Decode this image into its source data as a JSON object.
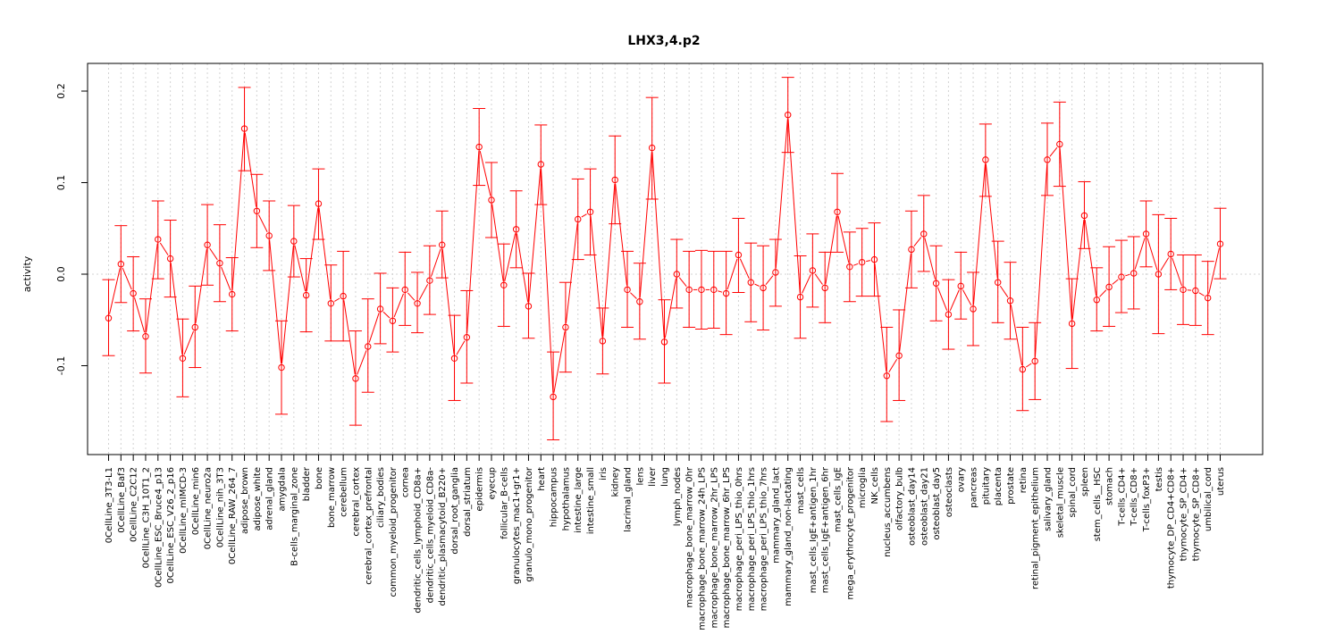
{
  "chart_data": {
    "type": "line",
    "title": "LHX3,4.p2",
    "xlabel": "",
    "ylabel": "activity",
    "ylim": [
      -0.2,
      0.22
    ],
    "yticks": [
      -0.1,
      0.0,
      0.1,
      0.2
    ],
    "ytick_labels": [
      "-0.1",
      "0.0",
      "0.1",
      "0.2"
    ],
    "grid": true,
    "reference_line": 0.0,
    "colors": {
      "series": "#ff0000",
      "grid": "#d3d3d3",
      "axis": "#000000"
    },
    "categories": [
      "0CellLine_3T3-L1",
      "0CellLine_Baf3",
      "0CellLine_C2C12",
      "0CellLine_C3H_10T1_2",
      "0CellLine_ESC_Bruce4_p13",
      "0CellLine_ESC_V26_2_p16",
      "0CellLine_mIMCD-3",
      "0CellLine_min6",
      "0CellLine_neuro2a",
      "0CellLine_nih_3T3",
      "0CellLine_RAW_264_7",
      "adipose_brown",
      "adipose_white",
      "adrenal_gland",
      "amygdala",
      "B-cells_marginal_zone",
      "bladder",
      "bone",
      "bone_marrow",
      "cerebellum",
      "cerebral_cortex",
      "cerebral_cortex_prefrontal",
      "ciliary_bodies",
      "common_myeloid_progenitor",
      "cornea",
      "dendritic_cells_lymphoid_CD8a+",
      "dendritic_cells_myeloid_CD8a-",
      "dendritic_plasmacytoid_B220+",
      "dorsal_root_ganglia",
      "dorsal_striatum",
      "epidermis",
      "eyecup",
      "follicular_B-cells",
      "granulocytes_mac1+gr1+",
      "granulo_mono_progenitor",
      "heart",
      "hippocampus",
      "hypothalamus",
      "intestine_large",
      "intestine_small",
      "iris",
      "kidney",
      "lacrimal_gland",
      "lens",
      "liver",
      "lung",
      "lymph_nodes",
      "macrophage_bone_marrow_0hr",
      "macrophage_bone_marrow_24h_LPS",
      "macrophage_bone_marrow_2hr_LPS",
      "macrophage_bone_marrow_6hr_LPS",
      "macrophage_peri_LPS_thio_0hrs",
      "macrophage_peri_LPS_thio_1hrs",
      "macrophage_peri_LPS_thio_7hrs",
      "mammary_gland_lact",
      "mammary_gland_non-lactating",
      "mast_cells",
      "mast_cells_IgE+antigen_1hr",
      "mast_cells_IgE+antigen_6hr",
      "mast_cells_IgE",
      "mega_erythrocyte_progenitor",
      "microglia",
      "NK_cells",
      "nucleus_accumbens",
      "olfactory_bulb",
      "osteoblast_day14",
      "osteoblast_day21",
      "osteoblast_day5",
      "osteoclasts",
      "ovary",
      "pancreas",
      "pituitary",
      "placenta",
      "prostate",
      "retina",
      "retinal_pigment_epithelium",
      "salivary_gland",
      "skeletal_muscle",
      "spinal_cord",
      "spleen",
      "stem_cells__HSC",
      "stomach",
      "T-cells_CD4+",
      "T-cells_CD8+",
      "T-cells_foxP3+",
      "testis",
      "thymocyte_DP_CD4+CD8+",
      "thymocyte_SP_CD4+",
      "thymocyte_SP_CD8+",
      "umbilical_cord",
      "uterus"
    ],
    "series": [
      {
        "values": [
          -0.048,
          0.011,
          -0.021,
          -0.068,
          0.038,
          0.017,
          -0.092,
          -0.058,
          0.032,
          0.012,
          -0.022,
          0.159,
          0.069,
          0.042,
          -0.102,
          0.036,
          -0.023,
          0.077,
          -0.032,
          -0.024,
          -0.114,
          -0.079,
          -0.038,
          -0.051,
          -0.017,
          -0.032,
          -0.007,
          0.032,
          -0.092,
          -0.069,
          0.139,
          0.081,
          -0.012,
          0.049,
          -0.035,
          0.12,
          -0.134,
          -0.058,
          0.06,
          0.068,
          -0.073,
          0.103,
          -0.017,
          -0.03,
          0.138,
          -0.074,
          0.0,
          -0.017,
          -0.017,
          -0.017,
          -0.021,
          0.021,
          -0.009,
          -0.015,
          0.002,
          0.174,
          -0.025,
          0.004,
          -0.015,
          0.068,
          0.008,
          0.013,
          0.016,
          -0.111,
          -0.089,
          0.027,
          0.044,
          -0.01,
          -0.044,
          -0.013,
          -0.038,
          0.125,
          -0.009,
          -0.029,
          -0.104,
          -0.095,
          0.125,
          0.142,
          -0.054,
          0.064,
          -0.028,
          -0.014,
          -0.003,
          0.001,
          0.044,
          0.0,
          0.022,
          -0.017,
          -0.018,
          -0.026,
          0.033
        ],
        "error_low": [
          -0.089,
          -0.031,
          -0.062,
          -0.108,
          -0.005,
          -0.025,
          -0.134,
          -0.102,
          -0.012,
          -0.03,
          -0.062,
          0.113,
          0.029,
          0.004,
          -0.153,
          -0.003,
          -0.063,
          0.038,
          -0.073,
          -0.073,
          -0.165,
          -0.129,
          -0.076,
          -0.085,
          -0.056,
          -0.064,
          -0.044,
          -0.004,
          -0.138,
          -0.119,
          0.097,
          0.04,
          -0.057,
          0.007,
          -0.07,
          0.076,
          -0.181,
          -0.107,
          0.016,
          0.021,
          -0.109,
          0.055,
          -0.058,
          -0.071,
          0.082,
          -0.119,
          -0.037,
          -0.058,
          -0.06,
          -0.059,
          -0.066,
          -0.02,
          -0.052,
          -0.061,
          -0.035,
          0.133,
          -0.07,
          -0.036,
          -0.053,
          0.024,
          -0.03,
          -0.024,
          -0.024,
          -0.161,
          -0.138,
          -0.015,
          0.003,
          -0.051,
          -0.082,
          -0.049,
          -0.078,
          0.085,
          -0.053,
          -0.071,
          -0.149,
          -0.137,
          0.086,
          0.096,
          -0.103,
          0.028,
          -0.062,
          -0.057,
          -0.042,
          -0.038,
          0.008,
          -0.065,
          -0.017,
          -0.055,
          -0.056,
          -0.066,
          -0.005
        ],
        "error_high": [
          -0.006,
          0.053,
          0.019,
          -0.027,
          0.08,
          0.059,
          -0.049,
          -0.013,
          0.076,
          0.054,
          0.018,
          0.204,
          0.109,
          0.08,
          -0.051,
          0.075,
          0.017,
          0.115,
          0.01,
          0.025,
          -0.062,
          -0.027,
          0.001,
          -0.015,
          0.024,
          0.002,
          0.031,
          0.069,
          -0.045,
          -0.018,
          0.181,
          0.122,
          0.033,
          0.091,
          0.001,
          0.163,
          -0.085,
          -0.009,
          0.104,
          0.115,
          -0.037,
          0.151,
          0.025,
          0.012,
          0.193,
          -0.028,
          0.038,
          0.025,
          0.026,
          0.025,
          0.025,
          0.061,
          0.034,
          0.031,
          0.038,
          0.215,
          0.02,
          0.044,
          0.024,
          0.11,
          0.046,
          0.05,
          0.056,
          -0.058,
          -0.039,
          0.069,
          0.086,
          0.031,
          -0.006,
          0.024,
          0.002,
          0.164,
          0.036,
          0.013,
          -0.058,
          -0.053,
          0.165,
          0.188,
          -0.005,
          0.101,
          0.007,
          0.03,
          0.037,
          0.041,
          0.08,
          0.065,
          0.061,
          0.021,
          0.021,
          0.014,
          0.072
        ]
      }
    ]
  }
}
